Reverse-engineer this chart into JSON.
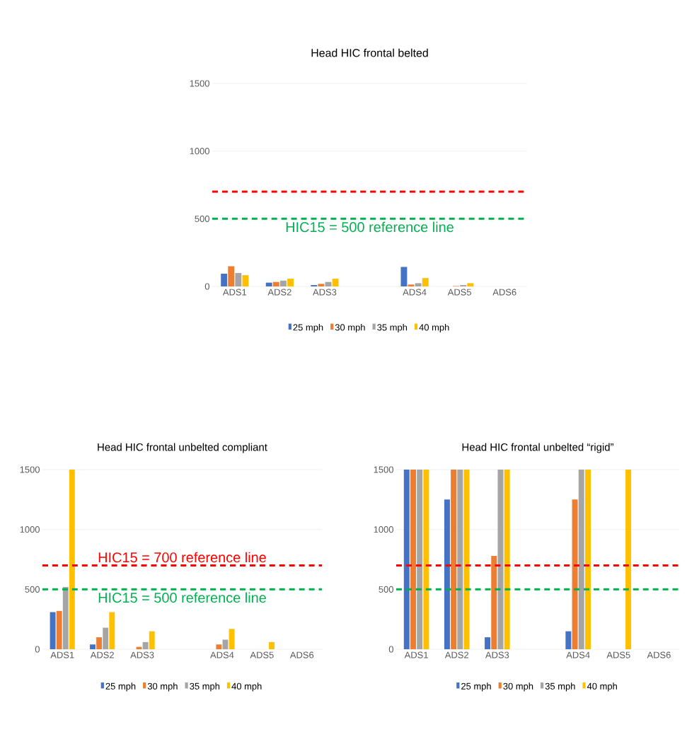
{
  "chart_data": [
    {
      "type": "bar",
      "title": "Head HIC frontal belted",
      "categories": [
        "ADS1",
        "ADS2",
        "ADS3",
        null,
        "ADS4",
        "ADS5",
        "ADS6"
      ],
      "series": [
        {
          "name": "25 mph",
          "color": "#4472c4",
          "values": [
            94,
            28,
            10,
            null,
            144,
            0,
            0
          ]
        },
        {
          "name": "30 mph",
          "color": "#ed7d31",
          "values": [
            149,
            33,
            19,
            null,
            14,
            3,
            0
          ]
        },
        {
          "name": "35 mph",
          "color": "#a5a5a5",
          "values": [
            99,
            43,
            33,
            null,
            24,
            10,
            0
          ]
        },
        {
          "name": "40 mph",
          "color": "#ffc000",
          "values": [
            83,
            57,
            57,
            null,
            62,
            24,
            0
          ]
        }
      ],
      "ylim": [
        0,
        1500
      ],
      "yticks": [
        0,
        500,
        1000,
        1500
      ],
      "grid": "y",
      "legend": "bottom",
      "ref_lines": [
        {
          "axis": "y",
          "value": 700,
          "color": "#ff0000",
          "line_style": "dashed"
        },
        {
          "axis": "y",
          "value": 500,
          "label": "HIC15 = 500 reference line",
          "color": "#00b050",
          "line_style": "dashed"
        }
      ]
    },
    {
      "type": "bar",
      "title": "Head HIC frontal unbelted compliant",
      "categories": [
        "ADS1",
        "ADS2",
        "ADS3",
        null,
        "ADS4",
        "ADS5",
        "ADS6"
      ],
      "series": [
        {
          "name": "25 mph",
          "color": "#4472c4",
          "values": [
            310,
            40,
            0,
            null,
            0,
            0,
            0
          ]
        },
        {
          "name": "30 mph",
          "color": "#ed7d31",
          "values": [
            320,
            100,
            20,
            null,
            40,
            0,
            0
          ]
        },
        {
          "name": "35 mph",
          "color": "#a5a5a5",
          "values": [
            520,
            180,
            60,
            null,
            80,
            0,
            0
          ]
        },
        {
          "name": "40 mph",
          "color": "#ffc000",
          "values": [
            1500,
            310,
            150,
            null,
            170,
            60,
            0
          ]
        }
      ],
      "ylim": [
        0,
        1500
      ],
      "yticks": [
        0,
        500,
        1000,
        1500
      ],
      "grid": "y",
      "legend": "bottom",
      "ref_lines": [
        {
          "axis": "y",
          "value": 700,
          "label": "HIC15 = 700 reference line",
          "color": "#ff0000",
          "line_style": "dashed"
        },
        {
          "axis": "y",
          "value": 500,
          "label": "HIC15 = 500 reference line",
          "color": "#00b050",
          "line_style": "dashed"
        }
      ]
    },
    {
      "type": "bar",
      "title": "Head HIC frontal unbelted “rigid”",
      "categories": [
        "ADS1",
        "ADS2",
        "ADS3",
        null,
        "ADS4",
        "ADS5",
        "ADS6"
      ],
      "series": [
        {
          "name": "25 mph",
          "color": "#4472c4",
          "values": [
            1500,
            1250,
            100,
            null,
            150,
            0,
            0
          ]
        },
        {
          "name": "30 mph",
          "color": "#ed7d31",
          "values": [
            1500,
            1500,
            780,
            null,
            1250,
            0,
            0
          ]
        },
        {
          "name": "35 mph",
          "color": "#a5a5a5",
          "values": [
            1500,
            1500,
            1500,
            null,
            1500,
            0,
            0
          ]
        },
        {
          "name": "40 mph",
          "color": "#ffc000",
          "values": [
            1500,
            1500,
            1500,
            null,
            1500,
            1500,
            0
          ]
        }
      ],
      "ylim": [
        0,
        1500
      ],
      "yticks": [
        0,
        500,
        1000,
        1500
      ],
      "grid": "y",
      "legend": "bottom",
      "ref_lines": [
        {
          "axis": "y",
          "value": 700,
          "color": "#ff0000",
          "line_style": "dashed"
        },
        {
          "axis": "y",
          "value": 500,
          "color": "#00b050",
          "line_style": "dashed"
        }
      ]
    }
  ]
}
